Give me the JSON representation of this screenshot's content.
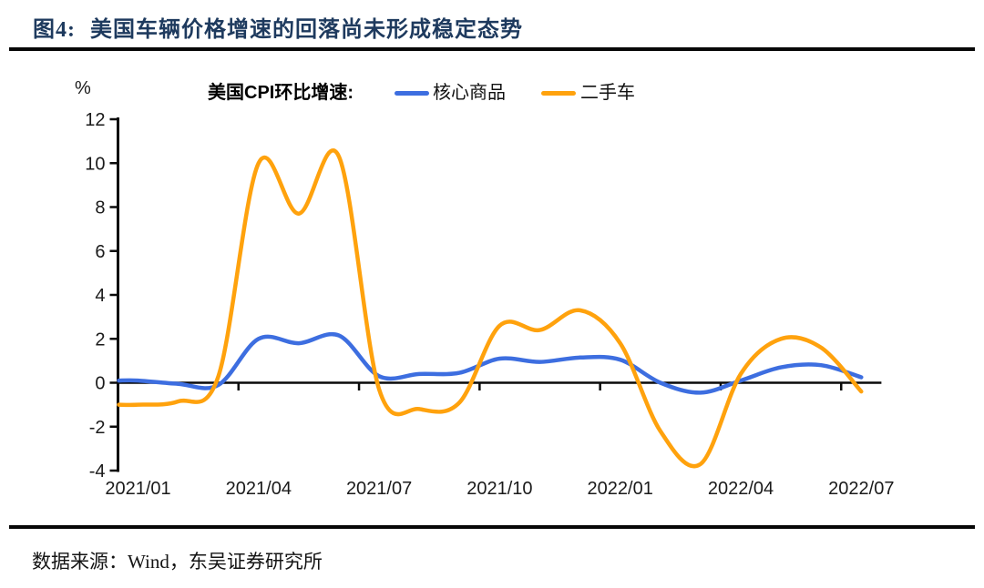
{
  "figure": {
    "title_prefix": "图4:",
    "title_text": "美国车辆价格增速的回落尚未形成稳定态势"
  },
  "legend": {
    "title": "美国CPI环比增速:",
    "items": [
      {
        "label": "核心商品",
        "color": "#3d6ee0"
      },
      {
        "label": "二手车",
        "color": "#ffa20d"
      }
    ]
  },
  "source_text": "数据来源：Wind，东吴证券研究所",
  "colors": {
    "axis": "#0a0a0a",
    "tick_text": "#1a1a1a",
    "title_navy": "#1e3a5e",
    "core_goods_blue": "#3d6ee0",
    "used_cars_orange": "#ffa20d"
  },
  "chart_data": {
    "type": "line",
    "title": "美国CPI环比增速:",
    "ylabel": "%",
    "xlabel": "",
    "ylim": [
      -4,
      12
    ],
    "ytick_step": 2,
    "grid": false,
    "legend_position": "top",
    "x": [
      "2021/01",
      "2021/02",
      "2021/03",
      "2021/04",
      "2021/05",
      "2021/06",
      "2021/07",
      "2021/08",
      "2021/09",
      "2021/10",
      "2021/11",
      "2021/12",
      "2022/01",
      "2022/02",
      "2022/03",
      "2022/04",
      "2022/05",
      "2022/06",
      "2022/07"
    ],
    "xtick_labels": [
      "2021/01",
      "2021/04",
      "2021/07",
      "2021/10",
      "2022/01",
      "2022/04",
      "2022/07"
    ],
    "series": [
      {
        "name": "核心商品",
        "id": "core-goods",
        "color": "#3d6ee0",
        "values": [
          0.1,
          -0.05,
          -0.1,
          2.0,
          1.8,
          2.15,
          0.3,
          0.4,
          0.45,
          1.1,
          0.95,
          1.15,
          1.05,
          0.0,
          -0.45,
          0.1,
          0.7,
          0.8,
          0.25
        ]
      },
      {
        "name": "二手车",
        "id": "used-cars",
        "color": "#ffa20d",
        "values": [
          -1.0,
          -0.85,
          0.3,
          10.0,
          7.7,
          10.3,
          -0.3,
          -1.2,
          -0.9,
          2.6,
          2.4,
          3.3,
          1.8,
          -2.2,
          -3.7,
          0.4,
          2.0,
          1.6,
          -0.4
        ]
      }
    ]
  }
}
